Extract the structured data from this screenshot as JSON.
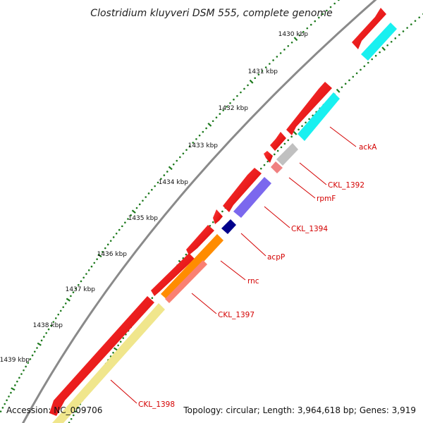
{
  "map": {
    "title": "Clostridium kluyveri DSM 555, complete genome",
    "accession": "Accession: NC_009706",
    "summary": "Topology: circular; Length: 3,964,618 bp; Genes: 3,919",
    "kbp_ticks": [
      "1430 kbp",
      "1431 kbp",
      "1432 kbp",
      "1433 kbp",
      "1434 kbp",
      "1435 kbp",
      "1436 kbp",
      "1437 kbp",
      "1438 kbp",
      "1439 kbp"
    ],
    "gene_labels": [
      "ackA",
      "CKL_1392",
      "rpmF",
      "CKL_1394",
      "acpP",
      "rnc",
      "CKL_1397",
      "CKL_1398"
    ]
  },
  "colors": {
    "cds": "#f20000",
    "backbone": "#8a8a8a",
    "tick_dots": "#1e7a1e",
    "label": "#d40000",
    "ackA": "#19f0f0",
    "CKL_1392": "#c0c0c0",
    "rpmF": "#f08080",
    "CKL_1394": "#7b68ee",
    "acpP": "#00008b",
    "rnc": "#ff8c00",
    "CKL_1397": "#fa8072",
    "CKL_1398": "#f0e68c"
  }
}
